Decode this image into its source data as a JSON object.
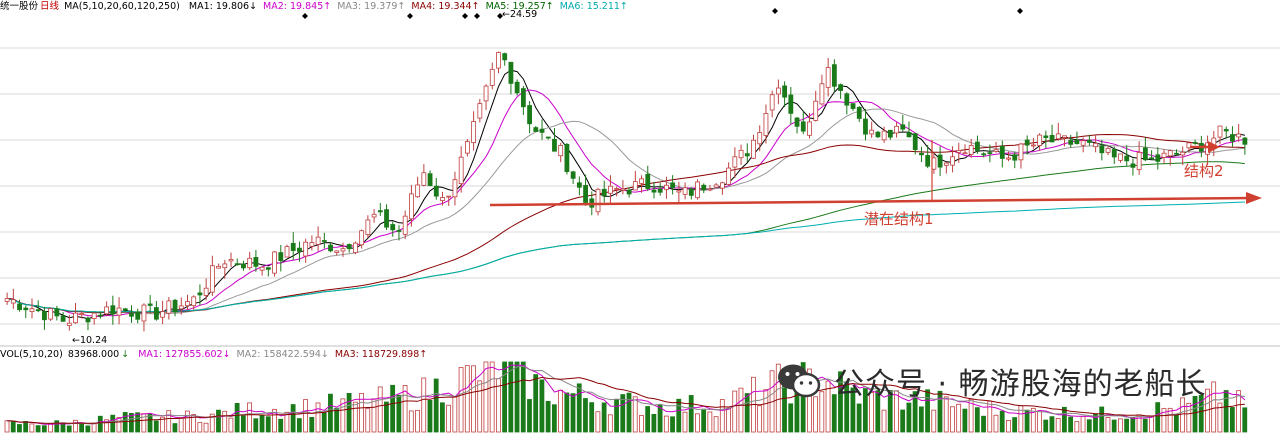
{
  "header": {
    "stock_name": "统一股份",
    "period": "日线",
    "ma_params": "MA(5,10,20,60,120,250)",
    "ma": [
      {
        "label": "MA1:",
        "value": "19.806",
        "arrow": "↓",
        "color": "#000000"
      },
      {
        "label": "MA2:",
        "value": "19.845",
        "arrow": "↑",
        "color": "#cc00cc"
      },
      {
        "label": "MA3:",
        "value": "19.379",
        "arrow": "↑",
        "color": "#888888"
      },
      {
        "label": "MA4:",
        "value": "19.344",
        "arrow": "↑",
        "color": "#8b0000"
      },
      {
        "label": "MA5:",
        "value": "19.257",
        "arrow": "↑",
        "color": "#006400"
      },
      {
        "label": "MA6:",
        "value": "15.211",
        "arrow": "↑",
        "color": "#00aaaa"
      }
    ]
  },
  "vol_header": {
    "label": "VOL(5,10,20)",
    "value": "83968.000",
    "arrow": "↓",
    "ma": [
      {
        "label": "MA1:",
        "value": "127855.602",
        "arrow": "↓",
        "color": "#cc00cc"
      },
      {
        "label": "MA2:",
        "value": "158422.594",
        "arrow": "↓",
        "color": "#888888"
      },
      {
        "label": "MA3:",
        "value": "118729.898",
        "arrow": "↑",
        "color": "#8b0000"
      }
    ]
  },
  "annotations": {
    "low_price": "10.24",
    "high_price": "24.59",
    "structure1": "潜在结构1",
    "structure2": "结构2"
  },
  "watermark": {
    "text": "公众号 · 畅游股海的老船长"
  },
  "colors": {
    "up": "#c04040",
    "down": "#1a7a1a",
    "annotation_arrow": "#d04030",
    "grid": "#d9d9d9"
  },
  "chart_data": {
    "type": "candlestick",
    "grid": true,
    "price_range": [
      9,
      26.5
    ],
    "moving_average_windows": [
      5,
      10,
      20,
      60,
      120,
      250
    ],
    "key_levels": {
      "low": 10.24,
      "high": 24.59,
      "last_close": 19.8
    },
    "price_path": [
      [
        0,
        11.5
      ],
      [
        30,
        10.9
      ],
      [
        62,
        10.24
      ],
      [
        110,
        10.9
      ],
      [
        150,
        10.6
      ],
      [
        190,
        11.3
      ],
      [
        220,
        13.5
      ],
      [
        260,
        13.2
      ],
      [
        310,
        14.5
      ],
      [
        340,
        14.1
      ],
      [
        372,
        15.8
      ],
      [
        395,
        14.9
      ],
      [
        420,
        18.2
      ],
      [
        440,
        16.5
      ],
      [
        465,
        19.5
      ],
      [
        497,
        24.59
      ],
      [
        530,
        20.5
      ],
      [
        560,
        19.0
      ],
      [
        583,
        16.5
      ],
      [
        615,
        17.2
      ],
      [
        650,
        17.5
      ],
      [
        680,
        16.9
      ],
      [
        720,
        18.0
      ],
      [
        748,
        19.5
      ],
      [
        775,
        23.0
      ],
      [
        800,
        20.0
      ],
      [
        822,
        23.8
      ],
      [
        850,
        21.5
      ],
      [
        870,
        20.0
      ],
      [
        900,
        20.2
      ],
      [
        930,
        18.5
      ],
      [
        960,
        19.6
      ],
      [
        1000,
        18.8
      ],
      [
        1040,
        19.8
      ],
      [
        1080,
        19.6
      ],
      [
        1110,
        18.8
      ],
      [
        1150,
        18.7
      ],
      [
        1190,
        19.4
      ],
      [
        1220,
        20.2
      ],
      [
        1248,
        19.8
      ]
    ],
    "volume_path": [
      [
        0,
        0.12
      ],
      [
        60,
        0.12
      ],
      [
        120,
        0.2
      ],
      [
        200,
        0.22
      ],
      [
        240,
        0.3
      ],
      [
        300,
        0.34
      ],
      [
        380,
        0.45
      ],
      [
        420,
        0.55
      ],
      [
        470,
        0.8
      ],
      [
        500,
        1.0
      ],
      [
        540,
        0.6
      ],
      [
        600,
        0.45
      ],
      [
        660,
        0.35
      ],
      [
        720,
        0.4
      ],
      [
        780,
        0.7
      ],
      [
        820,
        0.75
      ],
      [
        860,
        0.5
      ],
      [
        920,
        0.45
      ],
      [
        1000,
        0.3
      ],
      [
        1100,
        0.25
      ],
      [
        1180,
        0.35
      ],
      [
        1220,
        0.55
      ],
      [
        1248,
        0.3
      ]
    ]
  }
}
